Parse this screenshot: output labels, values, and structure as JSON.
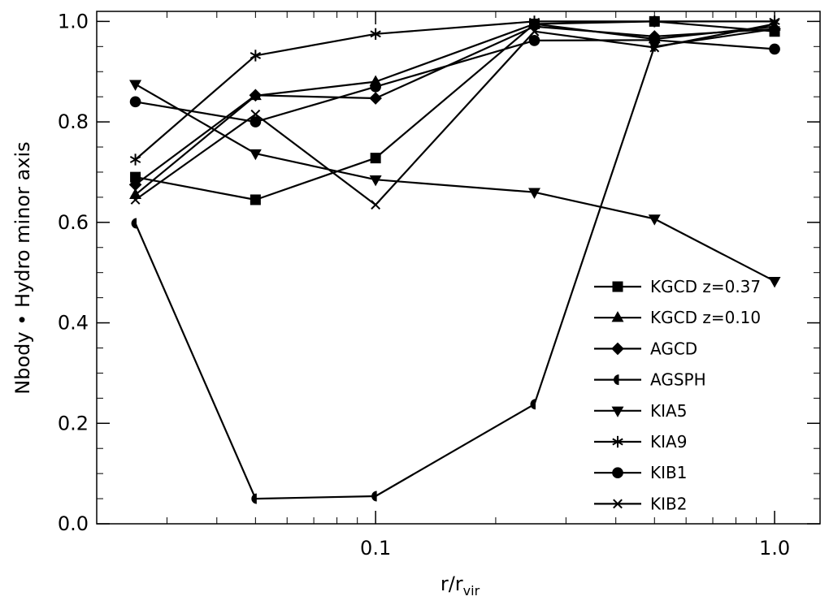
{
  "chart_data": {
    "type": "line",
    "title": "",
    "ylabel": "Nbody • Hydro minor axis",
    "xlabel": {
      "main": "r/r",
      "subscript": "vir"
    },
    "xscale": "log",
    "xlim": [
      0.02,
      1.3
    ],
    "ylim": [
      0.0,
      1.02
    ],
    "x_ticks": [
      0.1,
      1.0
    ],
    "x_tick_labels": [
      "0.1",
      "1.0"
    ],
    "y_ticks": [
      0.0,
      0.2,
      0.4,
      0.6,
      0.8,
      1.0
    ],
    "y_tick_labels": [
      "0.0",
      "0.2",
      "0.4",
      "0.6",
      "0.8",
      "1.0"
    ],
    "grid": false,
    "legend_position": "bottom-right",
    "x": [
      0.025,
      0.05,
      0.1,
      0.25,
      0.5,
      1.0
    ],
    "series": [
      {
        "name": "KGCD  z=0.37",
        "marker": "square",
        "values": [
          0.69,
          0.645,
          0.728,
          0.995,
          1.0,
          0.98
        ]
      },
      {
        "name": "KGCD  z=0.10",
        "marker": "triangle-up",
        "values": [
          0.655,
          0.852,
          0.88,
          0.995,
          0.965,
          0.99
        ]
      },
      {
        "name": "AGCD",
        "marker": "diamond",
        "values": [
          0.675,
          0.853,
          0.847,
          0.99,
          0.97,
          0.985
        ]
      },
      {
        "name": "AGSPH",
        "marker": "half-circle",
        "values": [
          0.598,
          0.05,
          0.055,
          0.238,
          0.95,
          0.985
        ]
      },
      {
        "name": "KIA5",
        "marker": "triangle-down",
        "values": [
          0.875,
          0.737,
          0.685,
          0.66,
          0.607,
          0.483
        ]
      },
      {
        "name": "KIA9",
        "marker": "star",
        "values": [
          0.725,
          0.932,
          0.975,
          1.0,
          1.0,
          1.0
        ]
      },
      {
        "name": "KIB1",
        "marker": "circle",
        "values": [
          0.84,
          0.8,
          0.87,
          0.962,
          0.963,
          0.945
        ]
      },
      {
        "name": "KIB2",
        "marker": "x",
        "values": [
          0.645,
          0.815,
          0.635,
          0.98,
          0.948,
          0.995
        ]
      }
    ]
  }
}
